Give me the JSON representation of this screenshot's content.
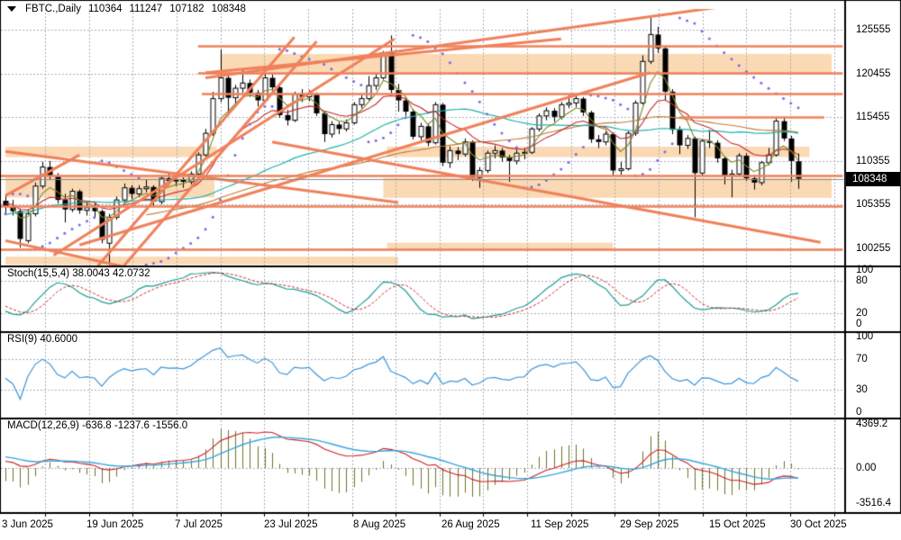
{
  "window": {
    "symbol_period": "FBTC.,Daily",
    "ohlc_display": {
      "open": "110364",
      "high": "111247",
      "low": "107182",
      "close": "108348"
    }
  },
  "price_axis": {
    "ticks": [
      "125555",
      "120455",
      "115455",
      "110355",
      "105355",
      "100255"
    ],
    "current_price": "108348"
  },
  "date_axis": {
    "labels": [
      "3 Jun 2025",
      "19 Jun 2025",
      "7 Jul 2025",
      "23 Jul 2025",
      "8 Aug 2025",
      "26 Aug 2025",
      "11 Sep 2025",
      "29 Sep 2025",
      "15 Oct 2025",
      "30 Oct 2025"
    ]
  },
  "panels": {
    "stoch": {
      "label": "Stoch(15,5,4) 38.0043 42.0732",
      "ticks": [
        "100",
        "80",
        "20",
        "0"
      ],
      "tick_values": [
        100,
        80,
        20,
        0
      ],
      "levels": [
        80,
        20
      ],
      "params": [
        15,
        5,
        4
      ],
      "last_values": [
        38.0043,
        42.0732
      ],
      "main_color": "#1E9E96",
      "signal_color": "#CC2B2B"
    },
    "rsi": {
      "label": "RSI(9) 40.6000",
      "ticks": [
        "100",
        "70",
        "30",
        "0"
      ],
      "tick_values": [
        100,
        70,
        30,
        0
      ],
      "levels": [
        70,
        30
      ],
      "params": [
        9
      ],
      "last_value": 40.6,
      "color": "#3E96D9"
    },
    "macd": {
      "label": "MACD(12,26,9) -636.8 -1237.6 -1556.0",
      "ticks": [
        "4369.2",
        "0.00",
        "-3516.4"
      ],
      "tick_values": [
        4369.2,
        0,
        -3516.4
      ],
      "params": [
        12,
        26,
        9
      ],
      "last_values": [
        -636.8,
        -1237.6,
        -1556.0
      ],
      "hist_color": "#6E7428",
      "macd_color": "#CC2025",
      "signal_color": "#35A7DF"
    }
  },
  "colors": {
    "background": "#FFFFFF",
    "grid": "#A7AEB8",
    "bull": "#FFFFFF",
    "bear": "#000000",
    "outline": "#000000",
    "annotation": "#F0815A",
    "zone_fill": "#FAD9B4",
    "sar": "#7C68E8",
    "ma_fast": "#7C8A28",
    "ma_mid": "#C8242C",
    "ma_slow": "#1FB3AB",
    "ma_slowest": "#BF7A35",
    "price_line": "#8A8A8A",
    "badge_bg": "#000000",
    "badge_text": "#FFFFFF"
  },
  "chart_data": {
    "type": "candlestick",
    "symbol": "FBTC.",
    "timeframe": "Daily",
    "x_tick_labels": [
      "3 Jun 2025",
      "19 Jun 2025",
      "7 Jul 2025",
      "23 Jul 2025",
      "8 Aug 2025",
      "26 Aug 2025",
      "11 Sep 2025",
      "29 Sep 2025",
      "15 Oct 2025",
      "30 Oct 2025"
    ],
    "x_tick_bar_index": [
      0,
      12,
      24,
      36,
      48,
      60,
      72,
      84,
      96,
      107
    ],
    "main": {
      "ylim": [
        98330,
        127950
      ],
      "ylabel": "price",
      "ohlc": [
        [
          105800,
          106600,
          104300,
          105100
        ],
        [
          105100,
          105900,
          104100,
          104600
        ],
        [
          104600,
          104900,
          100400,
          101400
        ],
        [
          101200,
          104800,
          100900,
          104300
        ],
        [
          104300,
          107900,
          104000,
          107500
        ],
        [
          107500,
          110300,
          107200,
          109700
        ],
        [
          109700,
          110400,
          108200,
          108700
        ],
        [
          108700,
          109000,
          105500,
          105900
        ],
        [
          105900,
          106600,
          103300,
          104800
        ],
        [
          104800,
          107200,
          104500,
          106900
        ],
        [
          106900,
          107100,
          104300,
          104700
        ],
        [
          104700,
          105600,
          104100,
          105000
        ],
        [
          105000,
          105500,
          103900,
          104600
        ],
        [
          104600,
          104800,
          100900,
          101300
        ],
        [
          100900,
          104300,
          98400,
          103900
        ],
        [
          103900,
          106300,
          103600,
          105900
        ],
        [
          105900,
          107800,
          105500,
          107300
        ],
        [
          107300,
          107600,
          106000,
          106600
        ],
        [
          106600,
          107600,
          106200,
          107200
        ],
        [
          107200,
          108200,
          106800,
          107400
        ],
        [
          107400,
          107600,
          105200,
          105700
        ],
        [
          105700,
          108700,
          105400,
          108400
        ],
        [
          108400,
          109100,
          107600,
          108100
        ],
        [
          108100,
          108600,
          107500,
          108200
        ],
        [
          108200,
          108500,
          107300,
          108000
        ],
        [
          108000,
          109200,
          107700,
          108900
        ],
        [
          108900,
          111400,
          108700,
          111100
        ],
        [
          111100,
          114100,
          110900,
          113600
        ],
        [
          113600,
          118400,
          113300,
          117600
        ],
        [
          117600,
          123300,
          117200,
          120000
        ],
        [
          120000,
          120500,
          115900,
          117700
        ],
        [
          117700,
          119200,
          116800,
          118800
        ],
        [
          118800,
          121000,
          118300,
          119400
        ],
        [
          119400,
          119800,
          117800,
          118300
        ],
        [
          118300,
          118600,
          116700,
          117400
        ],
        [
          117400,
          120600,
          117100,
          120000
        ],
        [
          120000,
          120400,
          118400,
          118900
        ],
        [
          118900,
          119100,
          115400,
          115700
        ],
        [
          115700,
          116300,
          114500,
          115100
        ],
        [
          115100,
          118400,
          114900,
          118100
        ],
        [
          118100,
          118700,
          117200,
          117800
        ],
        [
          117800,
          118600,
          117300,
          118100
        ],
        [
          118100,
          118300,
          115600,
          115900
        ],
        [
          115900,
          116100,
          112600,
          113500
        ],
        [
          113500,
          115000,
          113100,
          114600
        ],
        [
          114600,
          114900,
          113500,
          114100
        ],
        [
          114100,
          115200,
          113800,
          114800
        ],
        [
          114800,
          117200,
          114600,
          116900
        ],
        [
          116900,
          118000,
          116500,
          117600
        ],
        [
          117600,
          120200,
          117400,
          119100
        ],
        [
          119100,
          120500,
          118600,
          120000
        ],
        [
          120000,
          123100,
          119800,
          122900
        ],
        [
          122900,
          124900,
          118100,
          118600
        ],
        [
          118600,
          119300,
          116100,
          117400
        ],
        [
          117400,
          117800,
          115600,
          116100
        ],
        [
          116100,
          116400,
          112900,
          113200
        ],
        [
          113200,
          114800,
          112800,
          114400
        ],
        [
          114400,
          114700,
          112100,
          112500
        ],
        [
          112500,
          117200,
          112300,
          116900
        ],
        [
          116900,
          117100,
          109800,
          110200
        ],
        [
          110200,
          112100,
          109600,
          111600
        ],
        [
          111600,
          112000,
          110500,
          111200
        ],
        [
          111200,
          113000,
          110900,
          112600
        ],
        [
          112600,
          112800,
          108100,
          108500
        ],
        [
          108500,
          109700,
          107300,
          109300
        ],
        [
          109300,
          111600,
          109000,
          111300
        ],
        [
          111300,
          112200,
          110700,
          111600
        ],
        [
          111600,
          111900,
          110300,
          110800
        ],
        [
          110800,
          111100,
          108000,
          110400
        ],
        [
          110400,
          111700,
          110000,
          111300
        ],
        [
          111300,
          111900,
          110600,
          111400
        ],
        [
          111400,
          114300,
          111200,
          114100
        ],
        [
          114100,
          115900,
          113800,
          115600
        ],
        [
          115600,
          116600,
          115100,
          116200
        ],
        [
          116200,
          116500,
          114900,
          115500
        ],
        [
          115500,
          117200,
          115200,
          116900
        ],
        [
          116900,
          118000,
          116500,
          117100
        ],
        [
          117100,
          117900,
          116600,
          117600
        ],
        [
          117600,
          117800,
          115600,
          116000
        ],
        [
          116000,
          116200,
          112500,
          112900
        ],
        [
          112900,
          113400,
          111900,
          112600
        ],
        [
          112600,
          113800,
          112200,
          113500
        ],
        [
          113500,
          113700,
          108700,
          109300
        ],
        [
          109300,
          110300,
          108800,
          109500
        ],
        [
          109500,
          113900,
          109300,
          113600
        ],
        [
          113600,
          117400,
          113300,
          117100
        ],
        [
          117100,
          122600,
          116900,
          121900
        ],
        [
          121900,
          126900,
          121600,
          125000
        ],
        [
          125000,
          125900,
          122900,
          123400
        ],
        [
          123400,
          123600,
          117400,
          118400
        ],
        [
          118400,
          118700,
          113500,
          114000
        ],
        [
          114000,
          114400,
          111200,
          112200
        ],
        [
          112200,
          113400,
          111800,
          113000
        ],
        [
          113000,
          113200,
          103900,
          109000
        ],
        [
          109000,
          112900,
          108700,
          112700
        ],
        [
          112700,
          114000,
          111900,
          112500
        ],
        [
          112500,
          112800,
          110200,
          110700
        ],
        [
          110700,
          110900,
          107700,
          108700
        ],
        [
          108700,
          109400,
          106200,
          108900
        ],
        [
          108900,
          111300,
          108600,
          111000
        ],
        [
          111000,
          111300,
          108100,
          108400
        ],
        [
          108400,
          108800,
          107100,
          107900
        ],
        [
          107900,
          110400,
          107600,
          110200
        ],
        [
          110200,
          111900,
          109900,
          111100
        ],
        [
          111100,
          115500,
          110900,
          115000
        ],
        [
          115000,
          115500,
          112700,
          113000
        ],
        [
          113000,
          113300,
          108000,
          110400
        ],
        [
          110364,
          111247,
          107182,
          108348
        ]
      ]
    },
    "overlays": {
      "sar": {
        "name": "Parabolic SAR",
        "step": 0.02,
        "max": 0.2
      },
      "moving_averages": [
        {
          "period": 5,
          "type": "ema",
          "color": "#7C8A28"
        },
        {
          "period": 13,
          "type": "ema",
          "color": "#C8242C"
        },
        {
          "period": 36,
          "type": "sma",
          "color": "#1FB3AB"
        },
        {
          "period": 60,
          "type": "sma",
          "color": "#BF7A35"
        }
      ]
    },
    "annotations": {
      "hlines": [
        {
          "price": 123650,
          "from_bar": 26,
          "to_bar": 113
        },
        {
          "price": 120550,
          "from_bar": 26,
          "to_bar": 113
        },
        {
          "price": 118150,
          "from_bar": 26.5,
          "to_bar": 113
        },
        {
          "price": 108750,
          "from_bar": -1,
          "to_bar": 113
        },
        {
          "price": 105200,
          "from_bar": -1,
          "to_bar": 113
        },
        {
          "price": 100150,
          "from_bar": -1,
          "to_bar": 113
        },
        {
          "price": 115450,
          "from_bar": 91,
          "to_bar": 110.5
        }
      ],
      "trendlines": [
        [
          27,
          120000,
          100,
          128600
        ],
        [
          27,
          120600,
          75,
          124500
        ],
        [
          12.5,
          98300,
          39,
          124700
        ],
        [
          16,
          98300,
          42,
          124200
        ],
        [
          6.5,
          99500,
          52.5,
          124500
        ],
        [
          10,
          100700,
          87,
          120600
        ],
        [
          0,
          111500,
          53,
          105600
        ],
        [
          36,
          112600,
          110,
          101000
        ],
        [
          0,
          101200,
          17,
          98000
        ],
        [
          0,
          106400,
          10,
          111100
        ]
      ],
      "rects": [
        [
          29,
          122750,
          111.5,
          120600
        ],
        [
          0,
          112050,
          28.5,
          110850
        ],
        [
          51.5,
          112050,
          108.5,
          110850
        ],
        [
          0,
          108500,
          28.2,
          106200
        ],
        [
          51,
          108450,
          111.5,
          106150
        ],
        [
          51.5,
          100950,
          82,
          100250
        ],
        [
          0,
          99350,
          53,
          98450
        ]
      ]
    },
    "indicators": {
      "stoch": {
        "params": [
          15,
          5,
          4
        ],
        "last_values": [
          38.0043,
          42.0732
        ],
        "ylim": [
          0,
          100
        ],
        "levels": [
          80,
          20
        ]
      },
      "rsi": {
        "params": [
          9
        ],
        "last_value": 40.6,
        "ylim": [
          0,
          100
        ],
        "levels": [
          70,
          30
        ]
      },
      "macd": {
        "params": [
          12,
          26,
          9
        ],
        "last_values": [
          -636.8,
          -1237.6,
          -1556.0
        ],
        "ylim": [
          -3516.4,
          4369.2
        ]
      }
    }
  }
}
